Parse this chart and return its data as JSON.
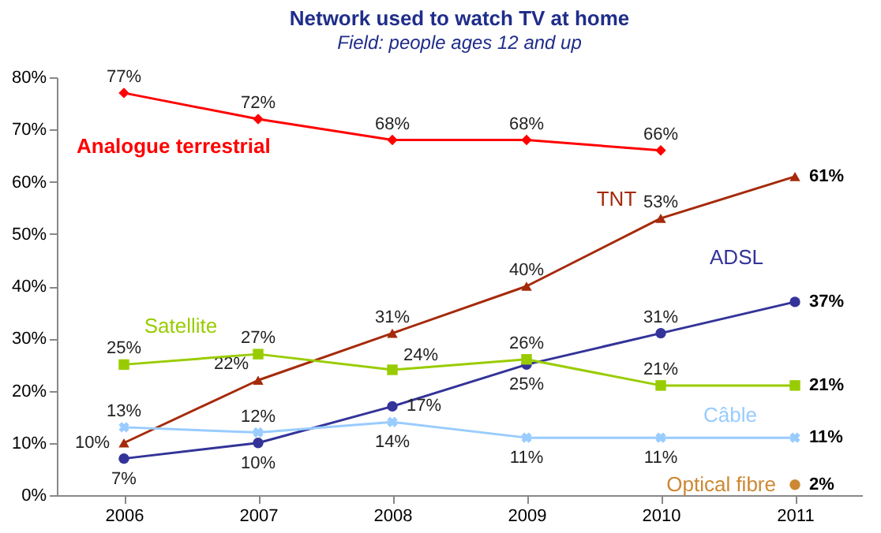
{
  "chart_data": {
    "type": "line",
    "title": "Network used to watch TV at home",
    "subtitle": "Field: people ages 12 and up",
    "categories": [
      "2006",
      "2007",
      "2008",
      "2009",
      "2010",
      "2011"
    ],
    "ylim": [
      0,
      80
    ],
    "yticks": [
      {
        "value": 0,
        "label": "0%"
      },
      {
        "value": 10,
        "label": "10%"
      },
      {
        "value": 20,
        "label": "20%"
      },
      {
        "value": 30,
        "label": "30%"
      },
      {
        "value": 40,
        "label": "40%"
      },
      {
        "value": 50,
        "label": "50%"
      },
      {
        "value": 60,
        "label": "60%"
      },
      {
        "value": 70,
        "label": "70%"
      },
      {
        "value": 80,
        "label": "80%"
      }
    ],
    "grid": false,
    "line_style": "solid",
    "series": [
      {
        "name": "Analogue terrestrial",
        "color": "#ff0000",
        "marker": "diamond",
        "values": [
          77,
          72,
          68,
          68,
          66,
          null
        ],
        "value_labels": [
          "77%",
          "72%",
          "68%",
          "68%",
          "66%",
          null
        ]
      },
      {
        "name": "TNT",
        "color": "#a52a0a",
        "marker": "triangle",
        "values": [
          10,
          22,
          31,
          40,
          53,
          61
        ],
        "value_labels": [
          "10%",
          "22%",
          "31%",
          "40%",
          "53%",
          "61%"
        ]
      },
      {
        "name": "ADSL",
        "color": "#333399",
        "marker": "circle",
        "values": [
          7,
          10,
          17,
          25,
          31,
          37
        ],
        "value_labels": [
          "7%",
          "10%",
          "17%",
          "25%",
          "31%",
          "37%"
        ]
      },
      {
        "name": "Satellite",
        "color": "#99cc00",
        "marker": "square",
        "values": [
          25,
          27,
          24,
          26,
          21,
          21
        ],
        "value_labels": [
          "25%",
          "27%",
          "24%",
          "26%",
          "21%",
          "21%"
        ]
      },
      {
        "name": "Câble",
        "color": "#99ccff",
        "marker": "cross",
        "values": [
          13,
          12,
          14,
          11,
          11,
          11
        ],
        "value_labels": [
          "13%",
          "12%",
          "14%",
          "11%",
          "11%",
          "11%"
        ]
      },
      {
        "name": "Optical fibre",
        "color": "#cc8833",
        "marker": "circle",
        "values": [
          null,
          null,
          null,
          null,
          null,
          2
        ],
        "value_labels": [
          null,
          null,
          null,
          null,
          null,
          "2%"
        ]
      }
    ]
  }
}
